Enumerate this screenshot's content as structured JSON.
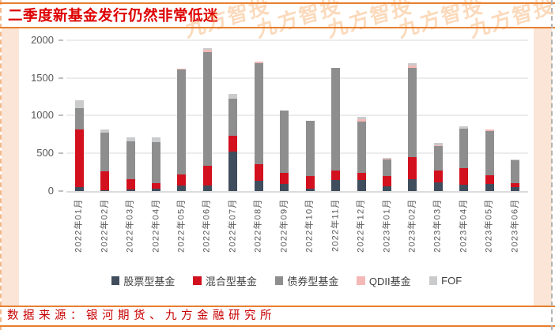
{
  "page": {
    "title": "二季度新基金发行仍然非常低迷",
    "source_note": "数据来源：银河期货、九方金融研究所",
    "watermark_text": "九方智投"
  },
  "colors": {
    "accent_orange": "#E87E2E",
    "title_red": "#DE0000",
    "source_red": "#C80000",
    "peach_background": "#FBE5D6",
    "axis_text": "#595959",
    "legend_text": "#3F3F3F",
    "gridline": "#ECECEC",
    "watermark_orange": "#F6A660"
  },
  "chart_data": {
    "type": "bar",
    "stacked": true,
    "title": "",
    "xlabel": "",
    "ylabel": "",
    "ylim": [
      0,
      2000
    ],
    "yticks": [
      0,
      500,
      1000,
      1500,
      2000
    ],
    "grid": true,
    "legend_position": "bottom",
    "categories": [
      "2022年01月",
      "2022年02月",
      "2022年03月",
      "2022年04月",
      "2022年05月",
      "2022年06月",
      "2022年07月",
      "2022年08月",
      "2022年09月",
      "2022年10月",
      "2022年11月",
      "2022年12月",
      "2023年01月",
      "2023年02月",
      "2023年03月",
      "2023年04月",
      "2023年05月",
      "2023年06月"
    ],
    "series": [
      {
        "name": "股票型基金",
        "color": "#3F4D5D",
        "values": [
          55,
          15,
          20,
          30,
          70,
          75,
          525,
          135,
          90,
          30,
          145,
          150,
          60,
          160,
          110,
          85,
          90,
          55
        ]
      },
      {
        "name": "混合型基金",
        "color": "#D2101E",
        "values": [
          760,
          250,
          135,
          70,
          145,
          255,
          205,
          225,
          155,
          170,
          125,
          95,
          135,
          290,
          165,
          220,
          115,
          50
        ]
      },
      {
        "name": "债券型基金",
        "color": "#8E8E8E",
        "values": [
          280,
          505,
          505,
          550,
          1395,
          1515,
          495,
          1330,
          825,
          730,
          1360,
          680,
          220,
          1180,
          320,
          520,
          590,
          300
        ]
      },
      {
        "name": "QDII基金",
        "color": "#F4B9B7",
        "values": [
          0,
          0,
          0,
          0,
          15,
          25,
          0,
          20,
          0,
          0,
          0,
          25,
          15,
          30,
          15,
          0,
          20,
          0
        ]
      },
      {
        "name": "FOF",
        "color": "#C9CBCC",
        "values": [
          105,
          45,
          50,
          60,
          0,
          20,
          60,
          0,
          0,
          0,
          0,
          30,
          10,
          30,
          25,
          35,
          0,
          15
        ]
      }
    ],
    "totals": [
      1200,
      815,
      710,
      710,
      1625,
      1890,
      1285,
      1710,
      1070,
      930,
      1630,
      980,
      440,
      1690,
      635,
      860,
      815,
      420
    ]
  }
}
